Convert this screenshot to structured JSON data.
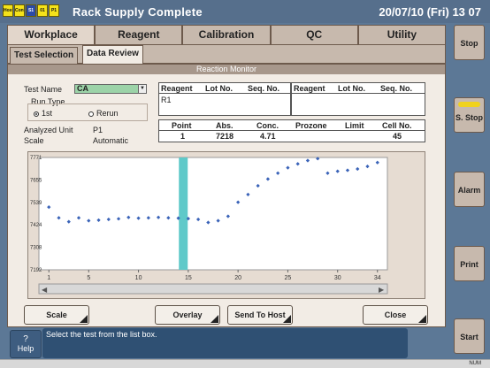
{
  "status_icons": [
    "Host",
    "Cont",
    "S1",
    "01",
    "P1"
  ],
  "app_title": "Rack Supply Complete",
  "datetime": "20/07/10 (Fri) 13 07",
  "main_tabs": [
    "Workplace",
    "Reagent",
    "Calibration",
    "QC",
    "Utility"
  ],
  "sub_tabs": {
    "test_selection": "Test Selection",
    "data_review": "Data Review"
  },
  "panel_title": "Reaction Monitor",
  "test_name_label": "Test Name",
  "test_name_value": "CA",
  "run_type_label": "Run Type",
  "run_type_options": [
    "1st",
    "Rerun"
  ],
  "analyzed_unit_label": "Analyzed Unit",
  "analyzed_unit_value": "P1",
  "scale_label": "Scale",
  "scale_value": "Automatic",
  "reagent_headers": [
    "Reagent",
    "Lot No.",
    "Seq. No."
  ],
  "reagent_rows": [
    [
      "R1",
      "",
      ""
    ]
  ],
  "point_headers": [
    "Point",
    "Abs.",
    "Conc.",
    "Prozone",
    "Limit",
    "Cell No."
  ],
  "point_row": [
    "1",
    "7218",
    "4.71",
    "",
    "",
    "45"
  ],
  "chart_data": {
    "type": "scatter",
    "x": [
      1,
      2,
      3,
      4,
      5,
      6,
      7,
      8,
      9,
      10,
      11,
      12,
      13,
      14,
      15,
      16,
      17,
      18,
      19,
      20,
      21,
      22,
      23,
      24,
      25,
      26,
      27,
      28,
      29,
      30,
      31,
      32,
      33,
      34
    ],
    "y": [
      7515,
      7460,
      7440,
      7460,
      7445,
      7448,
      7452,
      7455,
      7462,
      7458,
      7460,
      7462,
      7460,
      7458,
      7456,
      7452,
      7436,
      7445,
      7468,
      7540,
      7580,
      7625,
      7660,
      7690,
      7718,
      7738,
      7755,
      7765,
      7690,
      7700,
      7705,
      7712,
      7725,
      7745
    ],
    "xlim": [
      0,
      35
    ],
    "ylim": [
      7192,
      7771
    ],
    "xticks": [
      1,
      5,
      10,
      15,
      20,
      25,
      30,
      34
    ],
    "yticks": [
      7192,
      7308,
      7424,
      7539,
      7655,
      7771
    ],
    "highlight_x": 14.5,
    "point_color": "#3a63b8",
    "highlight_color": "#5fc9c9"
  },
  "buttons": {
    "scale": "Scale",
    "overlay": "Overlay",
    "send_to_host": "Send To Host",
    "close": "Close"
  },
  "side_buttons": {
    "stop": "Stop",
    "s_stop": "S. Stop",
    "alarm": "Alarm",
    "print": "Print",
    "start": "Start"
  },
  "help_label": "Help",
  "help_glyph": "?",
  "message": "Select the test from the list box.",
  "num_indicator": "NUM"
}
